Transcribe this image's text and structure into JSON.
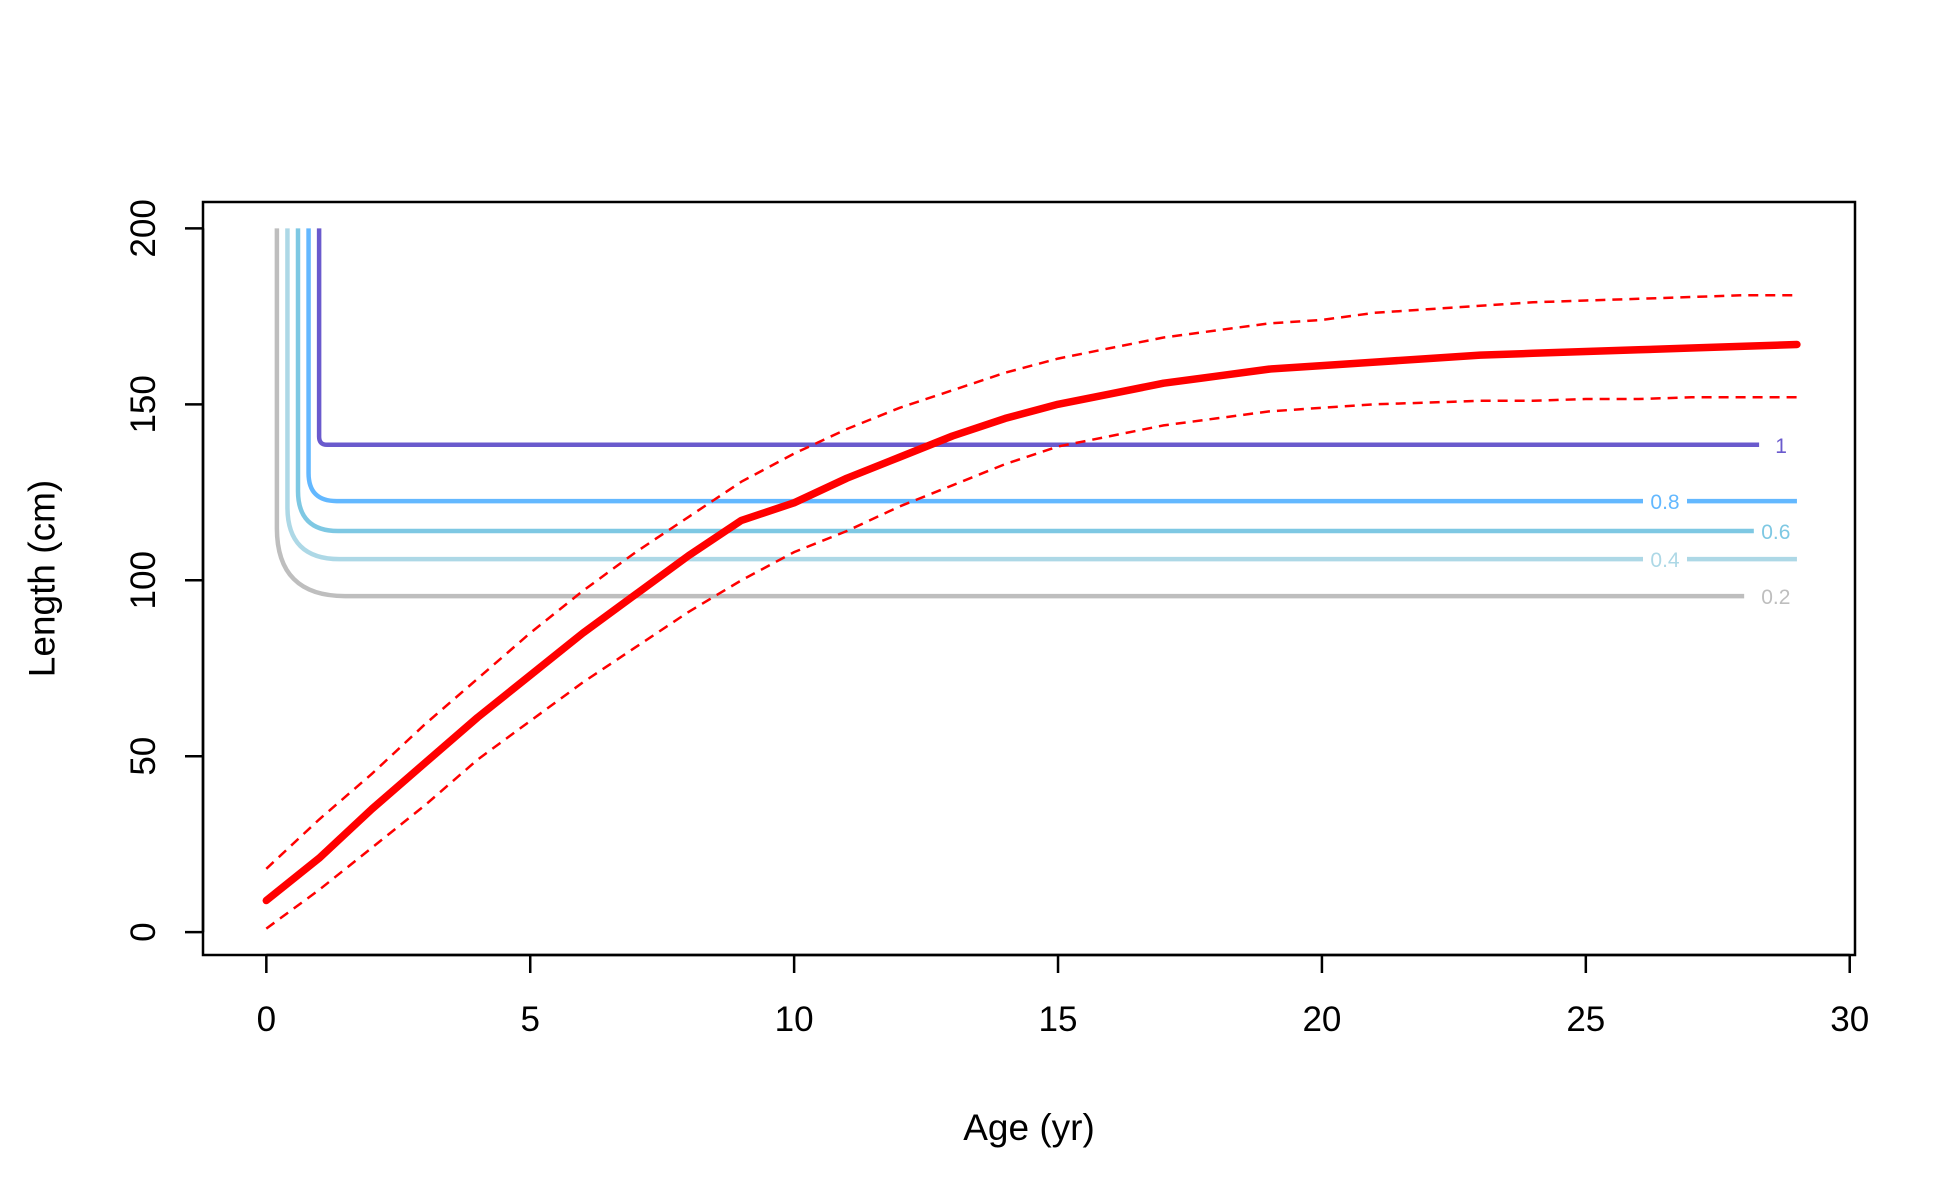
{
  "chart_data": {
    "type": "line",
    "title": "",
    "xlabel": "Age (yr)",
    "ylabel": "Length (cm)",
    "xlim": [
      -1.2,
      30.1
    ],
    "ylim": [
      -6.5,
      207.5
    ],
    "x_ticks": [
      0,
      5,
      10,
      15,
      20,
      25,
      30
    ],
    "x_tick_labels": [
      "0",
      "5",
      "10",
      "15",
      "20",
      "25",
      "30"
    ],
    "y_ticks": [
      0,
      50,
      100,
      150,
      200
    ],
    "y_tick_labels": [
      "0",
      "50",
      "100",
      "150",
      "200"
    ],
    "grid": false,
    "legend": "none",
    "growth_curve": {
      "color": "#ff0000",
      "x": [
        0,
        1,
        2,
        3,
        4,
        5,
        6,
        7,
        8,
        9,
        10,
        11,
        12,
        13,
        14,
        15,
        16,
        17,
        18,
        19,
        20,
        21,
        22,
        23,
        24,
        25,
        26,
        27,
        28,
        29
      ],
      "mean": [
        9,
        21,
        35,
        48,
        61,
        73,
        85,
        96,
        107,
        117,
        122,
        129,
        135,
        141,
        146,
        150,
        153,
        156,
        158,
        160,
        161,
        162,
        163,
        164,
        164.5,
        165,
        165.5,
        166,
        166.5,
        167
      ],
      "upper": [
        18,
        32,
        45,
        59,
        72,
        85,
        97,
        108,
        118,
        128,
        136,
        143,
        149,
        154,
        159,
        163,
        166,
        169,
        171,
        173,
        174,
        176,
        177,
        178,
        179,
        179.5,
        180,
        180.5,
        181,
        181
      ],
      "lower": [
        1,
        12,
        24,
        36,
        49,
        60,
        71,
        81,
        91,
        100,
        108,
        114,
        121,
        127,
        133,
        138,
        141,
        144,
        146,
        148,
        149,
        150,
        150.5,
        151,
        151,
        151.5,
        151.5,
        152,
        152,
        152
      ]
    },
    "contours": [
      {
        "label": "1",
        "color": "#6a5acd",
        "x_vertical": 1.0,
        "level": 138.5,
        "x_end": 28.5,
        "label_x": 28.7,
        "bend": 0.1
      },
      {
        "label": "0.8",
        "color": "#63b8ff",
        "x_vertical": 0.8,
        "level": 122.5,
        "x_end": 29.0,
        "label_x": 26.5,
        "bend": 0.35
      },
      {
        "label": "0.6",
        "color": "#7ec8e3",
        "x_vertical": 0.6,
        "level": 114.0,
        "x_end": 28.2,
        "label_x": 28.6,
        "bend": 0.5
      },
      {
        "label": "0.4",
        "color": "#add8e6",
        "x_vertical": 0.4,
        "level": 106.0,
        "x_end": 29.0,
        "label_x": 26.5,
        "bend": 0.65
      },
      {
        "label": "0.2",
        "color": "#bebebe",
        "x_vertical": 0.2,
        "level": 95.5,
        "x_end": 28.0,
        "label_x": 28.6,
        "bend": 0.85
      }
    ],
    "contour_top": 200
  }
}
